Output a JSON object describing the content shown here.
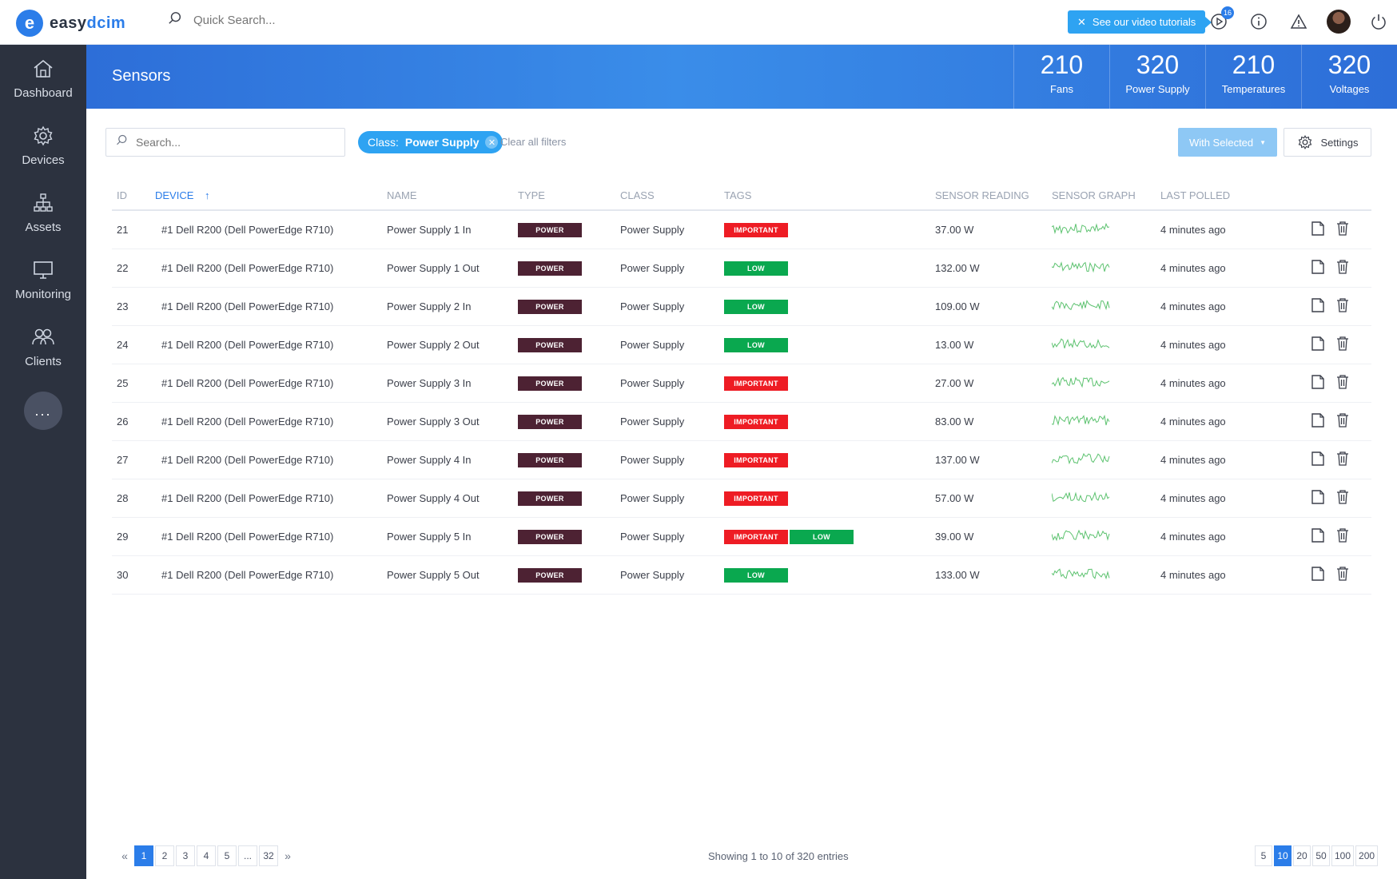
{
  "app": {
    "logo_letter": "e",
    "logo_text_left": "easy",
    "logo_text_right": "dcim",
    "quick_search_placeholder": "Quick Search...",
    "tutorial_label": "See our video tutorials",
    "notifications_count": "16"
  },
  "sidebar": {
    "items": [
      {
        "label": "Dashboard",
        "icon": "home-icon"
      },
      {
        "label": "Devices",
        "icon": "gear-icon"
      },
      {
        "label": "Assets",
        "icon": "hierarchy-icon"
      },
      {
        "label": "Monitoring",
        "icon": "monitor-icon"
      },
      {
        "label": "Clients",
        "icon": "users-icon"
      }
    ],
    "more_label": "..."
  },
  "header": {
    "title": "Sensors",
    "stats": [
      {
        "value": "210",
        "label": "Fans"
      },
      {
        "value": "320",
        "label": "Power Supply"
      },
      {
        "value": "210",
        "label": "Temperatures"
      },
      {
        "value": "320",
        "label": "Voltages"
      }
    ]
  },
  "toolbar": {
    "search_placeholder": "Search...",
    "filter_prefix": "Class:",
    "filter_value": "Power Supply",
    "clear_filters": "Clear all filters",
    "with_selected": "With Selected",
    "settings": "Settings"
  },
  "table": {
    "columns": [
      "ID",
      "DEVICE",
      "NAME",
      "TYPE",
      "CLASS",
      "TAGS",
      "SENSOR READING",
      "SENSOR GRAPH",
      "LAST POLLED"
    ],
    "rows": [
      {
        "id": "21",
        "device": "#1 Dell R200 (Dell PowerEdge R710)",
        "name": "Power Supply 1 In",
        "type": "POWER",
        "class": "Power Supply",
        "tags": [
          "IMPORTANT"
        ],
        "reading": "37.00 W",
        "polled": "4 minutes ago"
      },
      {
        "id": "22",
        "device": "#1 Dell R200 (Dell PowerEdge R710)",
        "name": "Power Supply 1 Out",
        "type": "POWER",
        "class": "Power Supply",
        "tags": [
          "LOW"
        ],
        "reading": "132.00 W",
        "polled": "4 minutes ago"
      },
      {
        "id": "23",
        "device": "#1 Dell R200 (Dell PowerEdge R710)",
        "name": "Power Supply 2 In",
        "type": "POWER",
        "class": "Power Supply",
        "tags": [
          "LOW"
        ],
        "reading": "109.00 W",
        "polled": "4 minutes ago"
      },
      {
        "id": "24",
        "device": "#1 Dell R200 (Dell PowerEdge R710)",
        "name": "Power Supply 2 Out",
        "type": "POWER",
        "class": "Power Supply",
        "tags": [
          "LOW"
        ],
        "reading": "13.00 W",
        "polled": "4 minutes ago"
      },
      {
        "id": "25",
        "device": "#1 Dell R200 (Dell PowerEdge R710)",
        "name": "Power Supply 3 In",
        "type": "POWER",
        "class": "Power Supply",
        "tags": [
          "IMPORTANT"
        ],
        "reading": "27.00 W",
        "polled": "4 minutes ago"
      },
      {
        "id": "26",
        "device": "#1 Dell R200 (Dell PowerEdge R710)",
        "name": "Power Supply 3 Out",
        "type": "POWER",
        "class": "Power Supply",
        "tags": [
          "IMPORTANT"
        ],
        "reading": "83.00 W",
        "polled": "4 minutes ago"
      },
      {
        "id": "27",
        "device": "#1 Dell R200 (Dell PowerEdge R710)",
        "name": "Power Supply 4 In",
        "type": "POWER",
        "class": "Power Supply",
        "tags": [
          "IMPORTANT"
        ],
        "reading": "137.00 W",
        "polled": "4 minutes ago"
      },
      {
        "id": "28",
        "device": "#1 Dell R200 (Dell PowerEdge R710)",
        "name": "Power Supply 4 Out",
        "type": "POWER",
        "class": "Power Supply",
        "tags": [
          "IMPORTANT"
        ],
        "reading": "57.00 W",
        "polled": "4 minutes ago"
      },
      {
        "id": "29",
        "device": "#1 Dell R200 (Dell PowerEdge R710)",
        "name": "Power Supply 5 In",
        "type": "POWER",
        "class": "Power Supply",
        "tags": [
          "IMPORTANT",
          "LOW"
        ],
        "reading": "39.00 W",
        "polled": "4 minutes ago"
      },
      {
        "id": "30",
        "device": "#1 Dell R200 (Dell PowerEdge R710)",
        "name": "Power Supply 5 Out",
        "type": "POWER",
        "class": "Power Supply",
        "tags": [
          "LOW"
        ],
        "reading": "133.00 W",
        "polled": "4 minutes ago"
      }
    ]
  },
  "pagination": {
    "pages": [
      "1",
      "2",
      "3",
      "4",
      "5",
      "...",
      "32"
    ],
    "active_page": "1",
    "showing": "Showing 1 to 10 of 320 entries",
    "sizes": [
      "5",
      "10",
      "20",
      "50",
      "100",
      "200"
    ],
    "active_size": "10"
  },
  "colors": {
    "accent": "#2b7de9",
    "sidebar": "#2c323f",
    "tag_power": "#4d2233",
    "tag_important": "#ee1c24",
    "tag_low": "#0aa84f",
    "sparkline": "#5cc26f"
  }
}
